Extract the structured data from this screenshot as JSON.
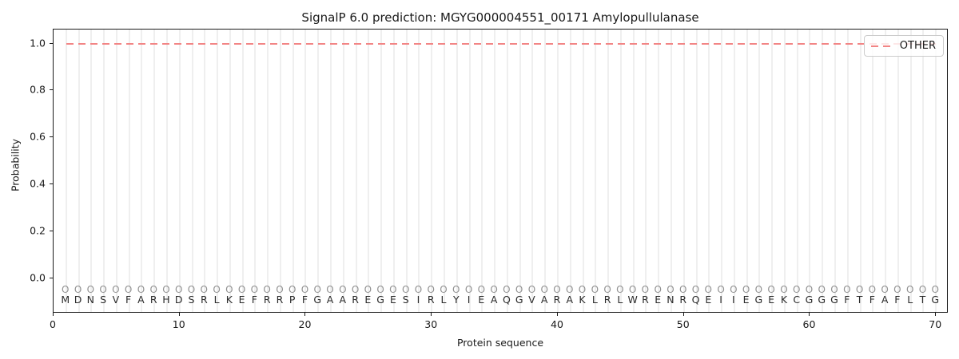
{
  "figure_title": "SignalP 6.0 prediction: MGYG000004551_00171 Amylopullulanase",
  "chart_data": {
    "type": "line",
    "title": "SignalP 6.0 prediction: MGYG000004551_00171 Amylopullulanase",
    "xlabel": "Protein sequence",
    "ylabel": "Probability",
    "xlim": [
      0,
      71
    ],
    "ylim": [
      -0.15,
      1.06
    ],
    "x_ticks": [
      0,
      10,
      20,
      30,
      40,
      50,
      60,
      70
    ],
    "y_ticks": [
      0.0,
      0.2,
      0.4,
      0.6,
      0.8,
      1.0
    ],
    "grid": "vertical gridline at every residue position; no horizontal gridlines",
    "legend": {
      "position": "upper-right",
      "entries": [
        {
          "label": "OTHER",
          "line_style": "dashed",
          "color": "#f28585"
        }
      ]
    },
    "series": [
      {
        "name": "OTHER",
        "style": "dashed",
        "color": "#f28585",
        "x_start": 1,
        "x_end": 70,
        "constant_y": 1.0,
        "note": "constant probability 1.0 across all 70 residue positions"
      }
    ],
    "sequence": "MDNSVFARHDSRLKEFRRPFGAAREGESIRLYIEAQGVARAKLRLWRENRQEIIEGEKCGGGFTFAFLTG",
    "per_position_predicted_label": "O",
    "colors": {
      "line": "#f28585",
      "grid": "#efefef",
      "axis": "#1a1a1a",
      "sequence_text": "#2b2b2b",
      "marker_text": "#919191"
    }
  }
}
